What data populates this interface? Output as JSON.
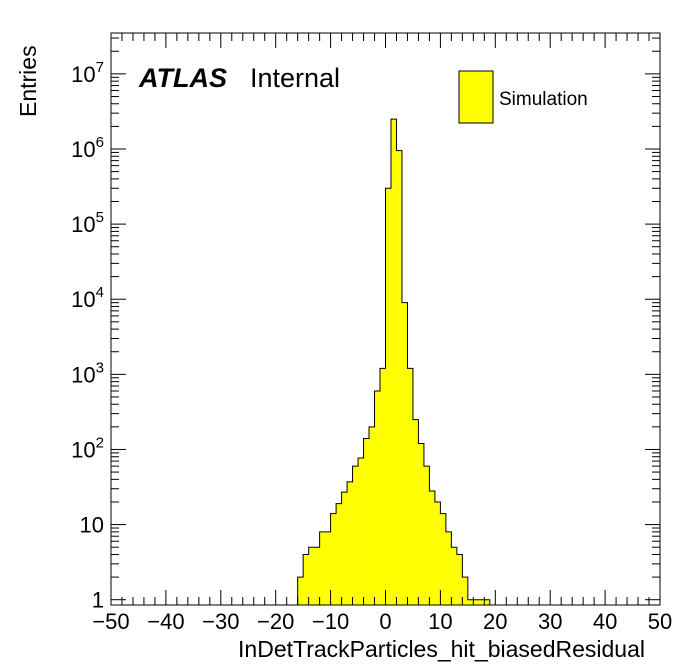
{
  "chart_data": {
    "type": "bar",
    "title": "",
    "xlabel": "InDetTrackParticles_hit_biasedResidual",
    "ylabel": "Entries",
    "xlim": [
      -50,
      50
    ],
    "ylim": [
      0.85,
      35000000
    ],
    "log_y": true,
    "x_tick_labels": [
      "−50",
      "−40",
      "−30",
      "−20",
      "−10",
      "0",
      "10",
      "20",
      "30",
      "40",
      "50"
    ],
    "x_tick_values": [
      -50,
      -40,
      -30,
      -20,
      -10,
      0,
      10,
      20,
      30,
      40,
      50
    ],
    "y_ticks": [
      {
        "value": 1,
        "base": "1",
        "exp": ""
      },
      {
        "value": 10,
        "base": "10",
        "exp": ""
      },
      {
        "value": 100,
        "base": "10",
        "exp": "2"
      },
      {
        "value": 1000,
        "base": "10",
        "exp": "3"
      },
      {
        "value": 10000,
        "base": "10",
        "exp": "4"
      },
      {
        "value": 100000,
        "base": "10",
        "exp": "5"
      },
      {
        "value": 1000000,
        "base": "10",
        "exp": "6"
      },
      {
        "value": 10000000,
        "base": "10",
        "exp": "7"
      }
    ],
    "bin_edges": [
      -16,
      -15,
      -14,
      -13,
      -12,
      -11,
      -10,
      -9,
      -8,
      -7,
      -6,
      -5,
      -4,
      -3,
      -2,
      -1,
      0,
      1,
      2,
      3,
      4,
      5,
      6,
      7,
      8,
      9,
      10,
      11,
      12,
      13,
      14,
      15,
      16,
      17,
      18,
      19
    ],
    "series": [
      {
        "name": "Simulation",
        "values": [
          2,
          4,
          5,
          5,
          8,
          8,
          14,
          19,
          27,
          37,
          60,
          77,
          140,
          200,
          600,
          1200,
          300000,
          2500000,
          950000,
          9000,
          1200,
          250,
          120,
          60,
          28,
          20,
          14,
          8,
          5,
          4,
          2,
          1,
          1,
          1,
          1
        ]
      }
    ],
    "fill_color": "#ffff00",
    "line_color": "#000000",
    "grid": false,
    "legend": {
      "placement": "top-right",
      "entries": [
        "Simulation"
      ]
    },
    "labels": {
      "experiment": "ATLAS",
      "status": "Internal"
    }
  }
}
